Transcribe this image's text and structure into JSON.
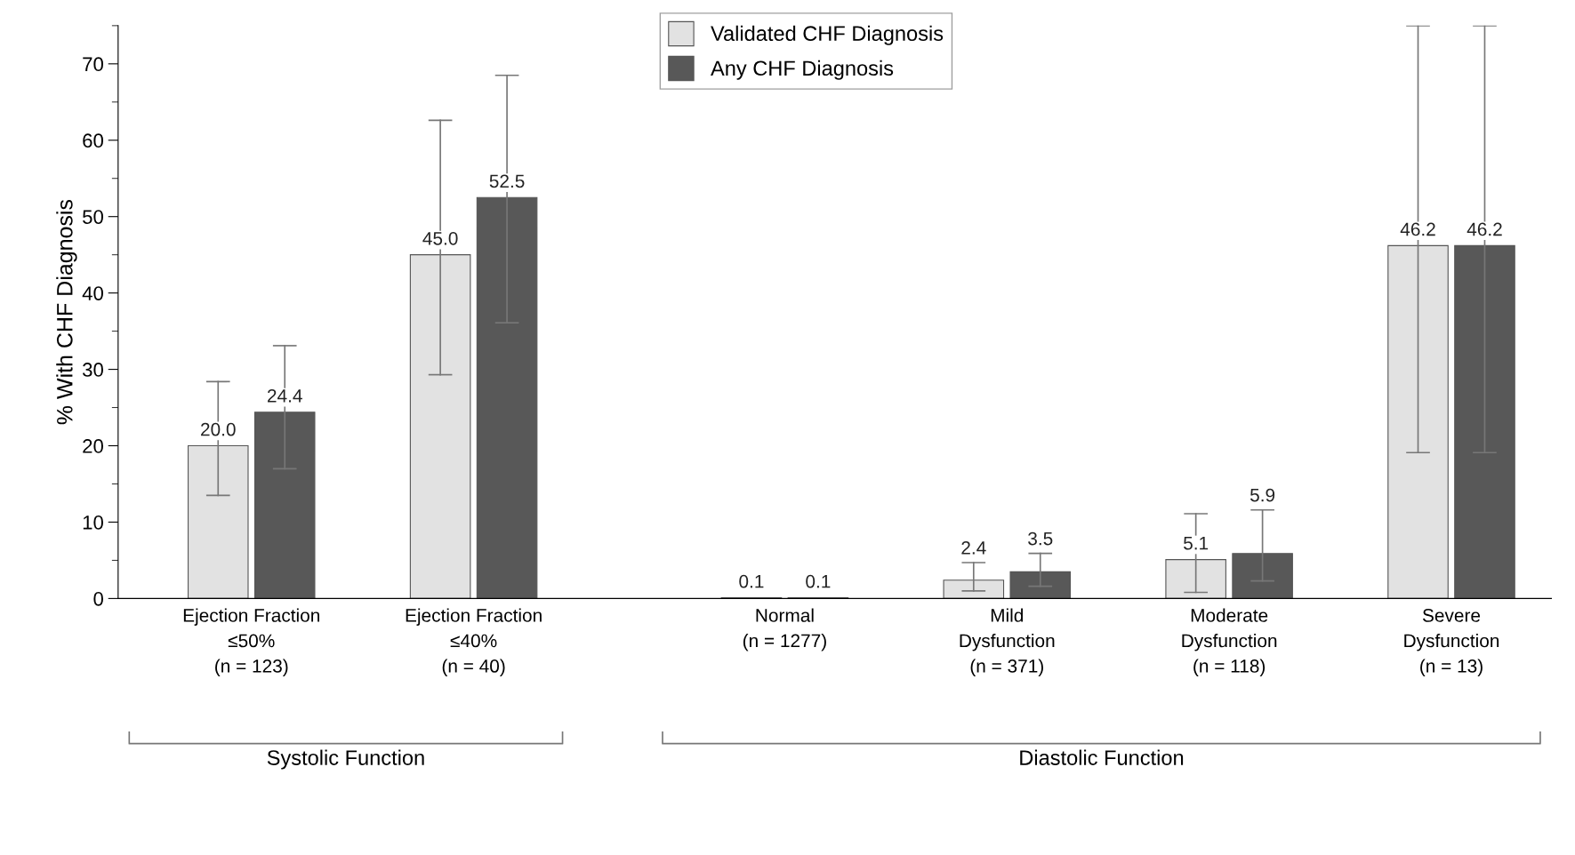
{
  "chart_data": {
    "type": "bar",
    "ylabel": "% With CHF Diagnosis",
    "categories": [
      "Ejection Fraction\n≤50%\n(n = 123)",
      "Ejection Fraction\n≤40%\n(n = 40)",
      "Normal\n(n = 1277)",
      "Mild\nDysfunction\n(n = 371)",
      "Moderate\nDysfunction\n(n = 118)",
      "Severe\nDysfunction\n(n = 13)"
    ],
    "series": [
      {
        "name": "Validated CHF Diagnosis",
        "color": "#e2e2e2",
        "values": [
          20.0,
          45.0,
          0.1,
          2.4,
          5.1,
          46.2
        ],
        "errors": [
          [
            13.5,
            28.4
          ],
          [
            29.3,
            62.6
          ],
          null,
          [
            1.0,
            4.7
          ],
          [
            0.8,
            11.1
          ],
          [
            19.1,
            75
          ]
        ],
        "value_labels": [
          "20.0",
          "45.0",
          "0.1",
          "2.4",
          "5.1",
          "46.2"
        ]
      },
      {
        "name": "Any CHF Diagnosis",
        "color": "#585858",
        "values": [
          24.4,
          52.5,
          0.1,
          3.5,
          5.9,
          46.2
        ],
        "errors": [
          [
            17.0,
            33.1
          ],
          [
            36.1,
            68.5
          ],
          null,
          [
            1.6,
            5.9
          ],
          [
            2.3,
            11.6
          ],
          [
            19.1,
            75
          ]
        ],
        "value_labels": [
          "24.4",
          "52.5",
          "0.1",
          "3.5",
          "5.9",
          "46.2"
        ]
      }
    ],
    "ylim": [
      0,
      75
    ],
    "yticks": [
      0,
      {
        "value": 5,
        "label": null
      },
      10,
      {
        "value": 15,
        "label": null
      },
      20,
      {
        "value": 25,
        "label": null
      },
      30,
      {
        "value": 35,
        "label": null
      },
      40,
      {
        "value": 45,
        "label": null
      },
      50,
      {
        "value": 55,
        "label": null
      },
      60,
      {
        "value": 65,
        "label": null
      },
      70,
      {
        "value": 75,
        "label": null
      }
    ],
    "annotations": [
      "Systolic Function",
      "Diastolic Function"
    ],
    "legend": "top",
    "grid": false
  }
}
